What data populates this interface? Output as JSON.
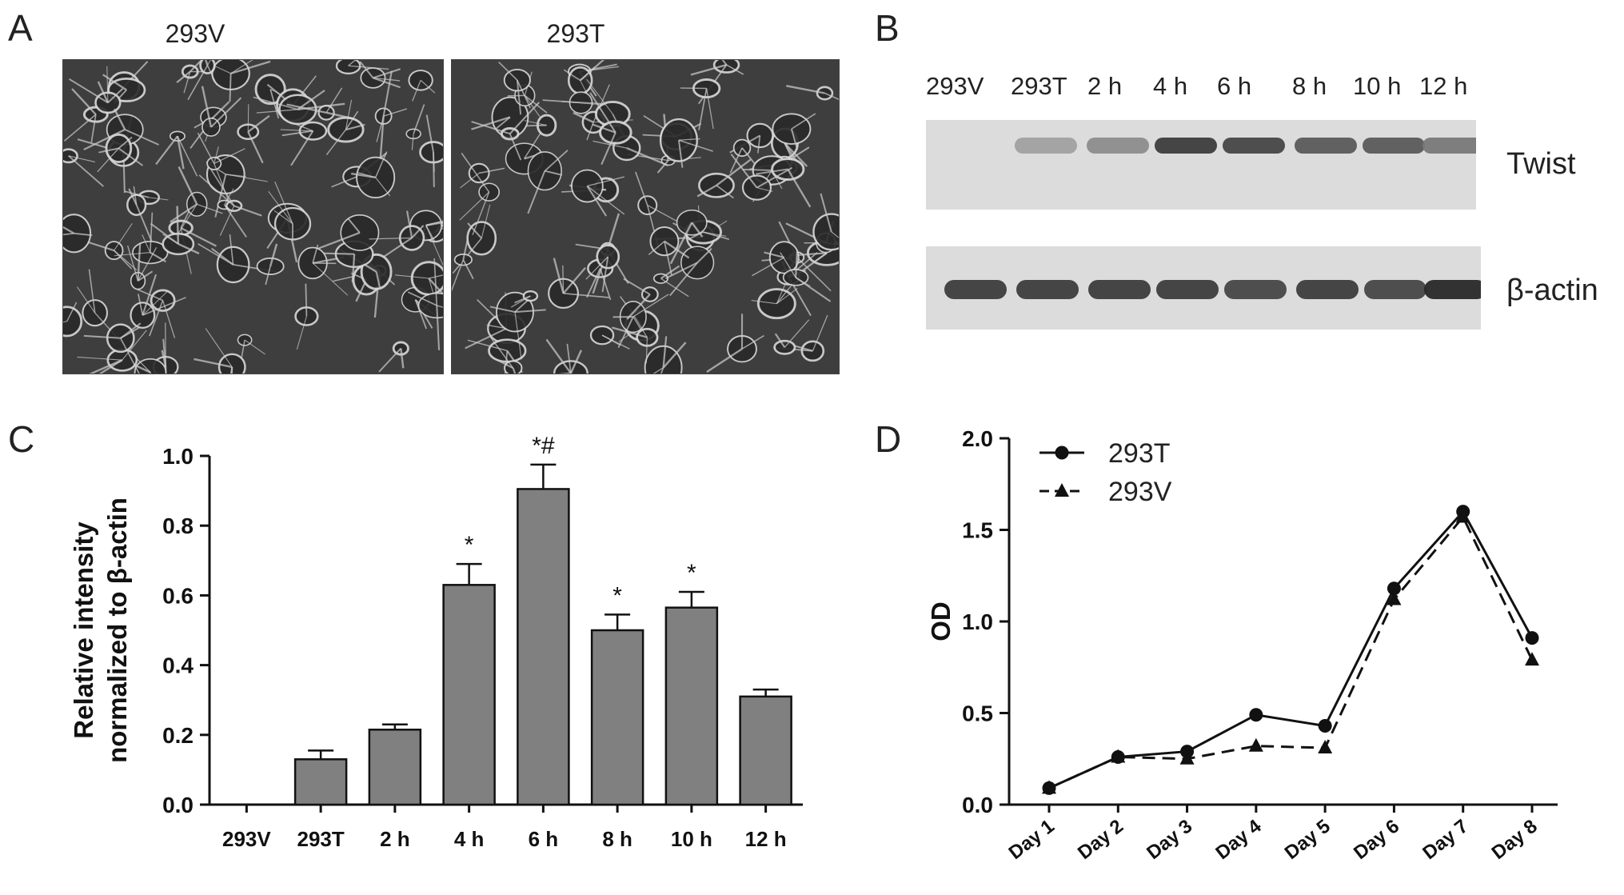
{
  "panels": {
    "A": {
      "letter": "A",
      "image_labels": [
        "293V",
        "293T"
      ]
    },
    "B": {
      "letter": "B",
      "lane_labels": [
        "293V",
        "293T",
        "2 h",
        "4 h",
        "6 h",
        "8 h",
        "10 h",
        "12 h"
      ],
      "protein_labels": [
        "Twist",
        "β-actin"
      ],
      "twist_band_intensity": [
        0.0,
        0.35,
        0.45,
        0.85,
        0.8,
        0.7,
        0.7,
        0.55
      ],
      "actin_band_intensity": [
        0.85,
        0.85,
        0.85,
        0.85,
        0.8,
        0.85,
        0.8,
        0.95
      ]
    },
    "C": {
      "letter": "C"
    },
    "D": {
      "letter": "D"
    }
  },
  "chart_data": [
    {
      "id": "C",
      "type": "bar",
      "categories": [
        "293V",
        "293T",
        "2 h",
        "4 h",
        "6 h",
        "8 h",
        "10 h",
        "12 h"
      ],
      "values": [
        0.0,
        0.13,
        0.215,
        0.63,
        0.905,
        0.5,
        0.565,
        0.31
      ],
      "errors": [
        0.0,
        0.025,
        0.015,
        0.06,
        0.07,
        0.045,
        0.045,
        0.02
      ],
      "annotations": [
        "",
        "",
        "",
        "*",
        "*#",
        "*",
        "*",
        ""
      ],
      "ylabel_lines": [
        "Relative intensity",
        "normalized to β-actin"
      ],
      "yticks": [
        "0.0",
        "0.2",
        "0.4",
        "0.6",
        "0.8",
        "1.0"
      ],
      "ylim": [
        0,
        1.0
      ],
      "bar_color": "#808080"
    },
    {
      "id": "D",
      "type": "line",
      "categories": [
        "Day 1",
        "Day 2",
        "Day 3",
        "Day 4",
        "Day 5",
        "Day 6",
        "Day 7",
        "Day 8"
      ],
      "series": [
        {
          "name": "293T",
          "values": [
            0.09,
            0.26,
            0.29,
            0.49,
            0.43,
            1.18,
            1.6,
            0.91
          ],
          "marker": "circle",
          "dash": "solid"
        },
        {
          "name": "293V",
          "values": [
            0.09,
            0.26,
            0.25,
            0.32,
            0.31,
            1.12,
            1.57,
            0.79
          ],
          "marker": "triangle",
          "dash": "dashed"
        }
      ],
      "ylabel": "OD",
      "yticks": [
        "0.0",
        "0.5",
        "1.0",
        "1.5",
        "2.0"
      ],
      "ylim": [
        0,
        2.0
      ],
      "legend_position": "top-left"
    }
  ]
}
